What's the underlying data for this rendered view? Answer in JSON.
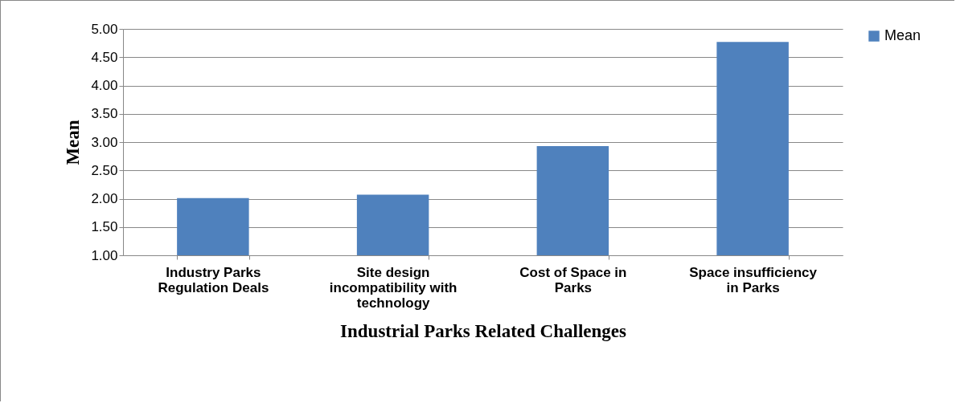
{
  "chart_data": {
    "type": "bar",
    "xlabel": "Industrial Parks Related Challenges",
    "ylabel": "Mean",
    "categories": [
      "Industry Parks Regulation Deals",
      "Site design incompatibility with technology",
      "Cost of Space in Parks",
      "Space insufficiency in Parks"
    ],
    "series": [
      {
        "name": "Mean",
        "color": "#4f81bd",
        "values": [
          2.01,
          2.07,
          2.93,
          4.77
        ]
      }
    ],
    "ylim": [
      1,
      5
    ],
    "yticks": [
      {
        "value": 1,
        "label": "1.00"
      },
      {
        "value": 1.5,
        "label": "1.50"
      },
      {
        "value": 2,
        "label": "2.00"
      },
      {
        "value": 2.5,
        "label": "2.50"
      },
      {
        "value": 3,
        "label": "3.00"
      },
      {
        "value": 3.5,
        "label": "3.50"
      },
      {
        "value": 4,
        "label": "4.00"
      },
      {
        "value": 4.5,
        "label": "4.50"
      },
      {
        "value": 5,
        "label": "5.00"
      }
    ],
    "grid": "y",
    "legend": "right"
  }
}
